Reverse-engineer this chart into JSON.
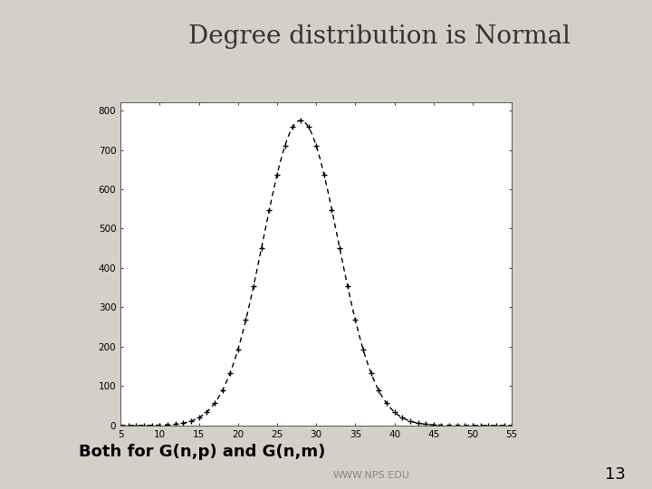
{
  "title": "Degree distribution is Normal",
  "subtitle": "Both for G(n,p) and G(n,m)",
  "slide_number": "13",
  "mu": 28.0,
  "sigma": 4.8,
  "peak": 775,
  "xlim": [
    5,
    55
  ],
  "ylim": [
    0,
    820
  ],
  "xticks": [
    5,
    10,
    15,
    20,
    25,
    30,
    35,
    40,
    45,
    50,
    55
  ],
  "yticks": [
    0,
    100,
    200,
    300,
    400,
    500,
    600,
    700,
    800
  ],
  "line_color": "#000000",
  "marker": "+",
  "slide_bg_color": "#d4d0c8",
  "left_panel_color": "#8a9aaa",
  "title_bg_color": "#e8e8e8",
  "content_bg_color": "#ffffff",
  "title_color": "#333333",
  "subtitle_color": "#000000",
  "title_fontsize": 20,
  "subtitle_fontsize": 13,
  "slide_number_fontsize": 13,
  "footer_color": "#888888",
  "footer_fontsize": 8
}
